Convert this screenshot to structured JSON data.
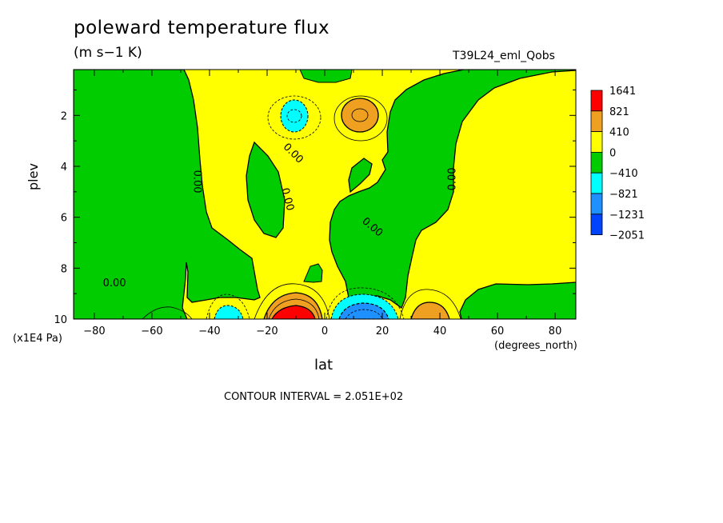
{
  "chart_data": {
    "type": "heatmap",
    "title": "poleward temperature flux",
    "subtitle": "(m s−1 K)",
    "run_label": "T39L24_eml_Qobs",
    "xlabel": "lat",
    "xunit": "(degrees_north)",
    "ylabel": "plev",
    "yunit": "(x1E4 Pa)",
    "x_ticks": [
      -80,
      -60,
      -40,
      -20,
      0,
      20,
      40,
      60,
      80
    ],
    "y_ticks": [
      2,
      4,
      6,
      8,
      10
    ],
    "xlim": [
      -87.2,
      87.2
    ],
    "ylim": [
      0.2,
      10
    ],
    "y_inverted": true,
    "contour_interval_text": "CONTOUR INTERVAL = 2.051E+02",
    "legend": {
      "placement": "right",
      "levels": [
        "1641",
        "821",
        "410",
        "0",
        "−410",
        "−821",
        "−1231",
        "−2051"
      ],
      "colors": [
        "#ff0000",
        "#f0a020",
        "#ffff00",
        "#00cc00",
        "#00ffff",
        "#1e90ff",
        "#0044ff"
      ]
    },
    "contour_labels": [
      {
        "text": "0.00",
        "x": -73,
        "y": 8.6,
        "rotate": 0
      },
      {
        "text": "0.00",
        "x": -44.5,
        "y": 4.6,
        "rotate": 90
      },
      {
        "text": "0.00",
        "x": -11,
        "y": 3.5,
        "rotate": 45
      },
      {
        "text": "0.00",
        "x": -13,
        "y": 5.3,
        "rotate": 75
      },
      {
        "text": "0.00",
        "x": 16.5,
        "y": 6.4,
        "rotate": 40
      },
      {
        "text": "0.00",
        "x": 44.5,
        "y": 4.5,
        "rotate": -90
      }
    ],
    "features": [
      {
        "kind": "negative-extremum",
        "x": -10,
        "y": 2.0,
        "value_band": "-821"
      },
      {
        "kind": "positive-extremum",
        "x": 12,
        "y": 2.0,
        "value_band": "821"
      },
      {
        "kind": "positive-extremum",
        "x": -12,
        "y": 9.9,
        "value_band": "1641"
      },
      {
        "kind": "negative-extremum",
        "x": 12,
        "y": 9.6,
        "value_band": "-1231"
      },
      {
        "kind": "positive-extremum",
        "x": 36,
        "y": 9.8,
        "value_band": "821"
      },
      {
        "kind": "negative-extremum",
        "x": -36,
        "y": 9.8,
        "value_band": "-821"
      }
    ]
  }
}
